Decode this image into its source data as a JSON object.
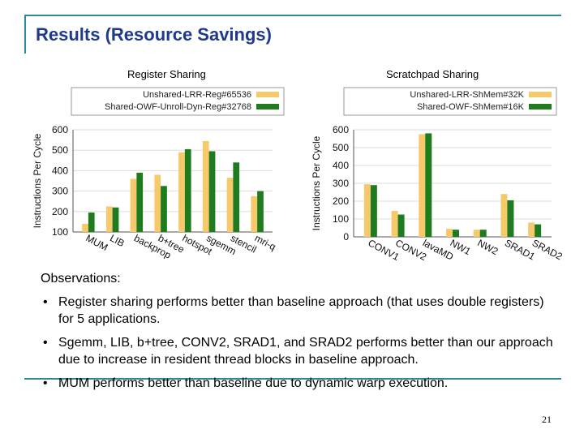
{
  "slide": {
    "title": "Results (Resource Savings)",
    "observations_heading": "Observations:",
    "bullets": [
      "Register sharing performs better than baseline approach (that uses double registers) for 5 applications.",
      "Sgemm, LIB, b+tree, CONV2, SRAD1, and SRAD2 performs better than our approach due to increase in resident thread blocks in baseline approach.",
      "MUM performs better than baseline due to dynamic warp execution."
    ],
    "bullet_glyph": "•",
    "page_number": "21"
  },
  "colors": {
    "series_a": "#f7c96a",
    "series_b": "#1e7b1e",
    "accent": "#1f3a8a",
    "frame": "#2a8a9a"
  },
  "chart_data": [
    {
      "type": "bar",
      "title": "Register Sharing",
      "ylabel": "Instructions Per Cycle",
      "ylim": [
        100,
        600
      ],
      "yticks": [
        "100",
        "200",
        "300",
        "400",
        "500",
        "600"
      ],
      "categories": [
        "MUM",
        "LIB",
        "backprop",
        "b+tree",
        "hotspot",
        "sgemm",
        "stencil",
        "mri-q"
      ],
      "series": [
        {
          "name": "Unshared-LRR-Reg#65536",
          "values": [
            140,
            225,
            360,
            380,
            490,
            545,
            365,
            275
          ]
        },
        {
          "name": "Shared-OWF-Unroll-Dyn-Reg#32768",
          "values": [
            195,
            220,
            390,
            325,
            505,
            495,
            440,
            300
          ]
        }
      ],
      "legend": "top"
    },
    {
      "type": "bar",
      "title": "Scratchpad Sharing",
      "ylabel": "Instructions Per Cycle",
      "ylim": [
        0,
        600
      ],
      "yticks": [
        "0",
        "100",
        "200",
        "300",
        "400",
        "500",
        "600"
      ],
      "categories": [
        "CONV1",
        "CONV2",
        "lavaMD",
        "NW1",
        "NW2",
        "SRAD1",
        "SRAD2"
      ],
      "series": [
        {
          "name": "Unshared-LRR-ShMem#32K",
          "values": [
            295,
            145,
            575,
            45,
            40,
            240,
            80
          ]
        },
        {
          "name": "Shared-OWF-ShMem#16K",
          "values": [
            290,
            125,
            580,
            40,
            40,
            205,
            70
          ]
        }
      ],
      "legend": "top"
    }
  ]
}
